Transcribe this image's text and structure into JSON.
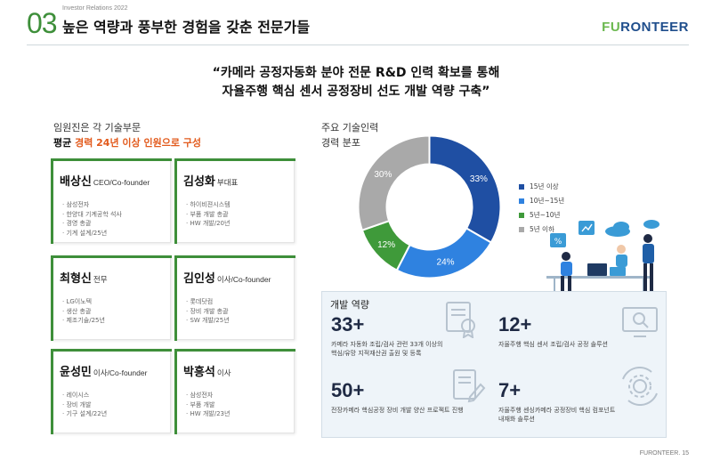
{
  "header": {
    "section_number": "03",
    "ir_label": "Investor Relations 2022",
    "title": "높은 역량과 풍부한 경험을 갖춘 전문가들",
    "logo_prefix": "FU",
    "logo_rest": "RONTEER"
  },
  "quote": {
    "line1": "“카메라 공정자동화 분야 전문 R&D 인력 확보를 통해",
    "line2": "자율주행 핵심 센서 공정장비 선도 개발 역량 구축”"
  },
  "team": {
    "caption1": "임원진은 각 기술부문",
    "caption2_prefix": "평균 ",
    "caption2_highlight": "경력 24년 이상 인원으로 구성",
    "members": [
      {
        "name": "배상신",
        "role": "CEO/Co-founder",
        "bullets": [
          "삼성전자",
          "한양대 기계공학 석사",
          "경영 총괄",
          "기계 설계/25년"
        ]
      },
      {
        "name": "김성화",
        "role": "부대표",
        "bullets": [
          "하이비젼시스템",
          "부품 개발 총괄",
          "HW 개발/20년"
        ]
      },
      {
        "name": "최형신",
        "role": "전무",
        "bullets": [
          "LG이노텍",
          "생산 총괄",
          "제조기술/25년"
        ]
      },
      {
        "name": "김인성",
        "role": "이사/Co-founder",
        "bullets": [
          "롯데닷컴",
          "장비 개발 총괄",
          "SW 개발/25년"
        ]
      },
      {
        "name": "윤성민",
        "role": "이사/Co-founder",
        "bullets": [
          "레이시스",
          "장비 개발",
          "기구 설계/22년"
        ]
      },
      {
        "name": "박흥석",
        "role": "이사",
        "bullets": [
          "삼성전자",
          "부품 개발",
          "HW 개발/23년"
        ]
      }
    ]
  },
  "tech": {
    "caption1": "주요 기술인력",
    "caption2": "경력 분포"
  },
  "chart_data": {
    "type": "pie",
    "donut": true,
    "categories": [
      "15년 이상",
      "10년~15년",
      "5년~10년",
      "5년 이하"
    ],
    "values": [
      33,
      24,
      12,
      30
    ],
    "labels": [
      "33%",
      "24%",
      "12%",
      "30%"
    ],
    "colors": [
      "#1f4fa3",
      "#2f82e0",
      "#3f9a3a",
      "#a9a9a9"
    ],
    "legend_position": "right"
  },
  "capability": {
    "title": "개발 역량",
    "items": [
      {
        "number": "33+",
        "lines": [
          "카메라 자동화 조립/검사 관련 33개 이상의",
          "핵심/유망 지적재산권 출원 및 등록"
        ],
        "icon": "certificate-icon"
      },
      {
        "number": "12+",
        "lines": [
          "자율주행 핵심 센서 조립/검사 공정 솔루션"
        ],
        "icon": "monitor-search-icon"
      },
      {
        "number": "50+",
        "lines": [
          "전장카메라 핵심공정 장비 개발 양산 프로젝트 진행"
        ],
        "icon": "document-edit-icon"
      },
      {
        "number": "7+",
        "lines": [
          "자율주행 센싱카메라 공정장비 핵심 컴포넌트",
          "내재화 솔루션"
        ],
        "icon": "gear-cycle-icon"
      }
    ]
  },
  "footer": {
    "text": "FURONTEER. 15"
  }
}
